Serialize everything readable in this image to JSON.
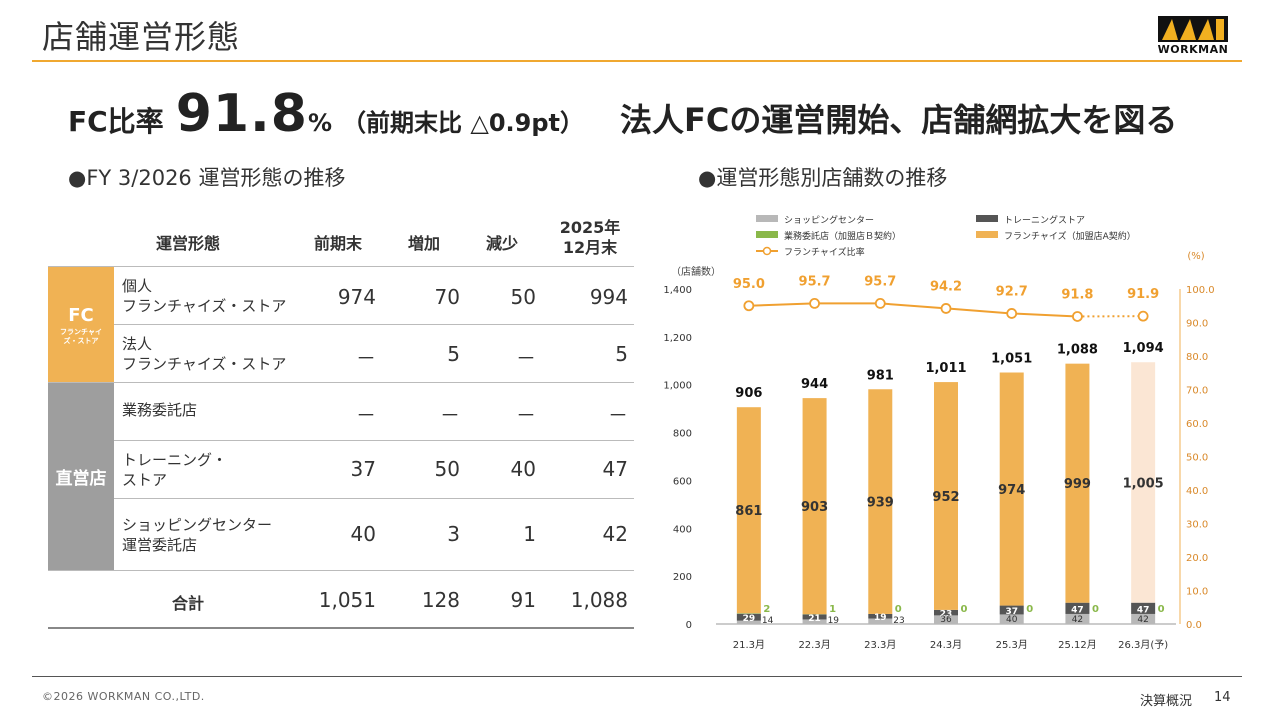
{
  "header": {
    "title": "店舗運営形態",
    "logo_text": "WORKMAN"
  },
  "headline": {
    "prefix": "FC比率",
    "ratio": "91.8",
    "pct": "%",
    "change": "（前期末比 △0.9pt）",
    "main": "法人FCの運営開始、店舗網拡大を図る"
  },
  "left_title": "●FY 3/2026 運営形態の推移",
  "right_title": "●運営形態別店舗数の推移",
  "table": {
    "headers": [
      "運営形態",
      "前期末",
      "増加",
      "減少",
      "2025年\n12月末"
    ],
    "groups": [
      {
        "label": "FC",
        "sublabel": "フランチャイズ・ストア",
        "color": "#f0b254"
      },
      {
        "label": "直営店",
        "sublabel": "",
        "color": "#9e9e9e"
      }
    ],
    "rows": [
      {
        "label": "個人\nフランチャイズ・ストア",
        "values": [
          "974",
          "70",
          "50",
          "994"
        ]
      },
      {
        "label": "法人\nフランチャイズ・ストア",
        "values": [
          "－",
          "5",
          "－",
          "5"
        ]
      },
      {
        "label": "業務委託店",
        "values": [
          "－",
          "－",
          "－",
          "－"
        ]
      },
      {
        "label": "トレーニング・\nストア",
        "values": [
          "37",
          "50",
          "40",
          "47"
        ]
      },
      {
        "label": "ショッピングセンター\n運営委託店",
        "values": [
          "40",
          "3",
          "1",
          "42"
        ]
      }
    ],
    "total": {
      "label": "合計",
      "values": [
        "1,051",
        "128",
        "91",
        "1,088"
      ]
    }
  },
  "chart_data": {
    "type": "bar",
    "stacked": true,
    "categories": [
      "21.3月",
      "22.3月",
      "23.3月",
      "24.3月",
      "25.3月",
      "25.12月",
      "26.3月(予)"
    ],
    "series": [
      {
        "name": "ショッピングセンター",
        "color": "#b8b8b8",
        "values": [
          14,
          19,
          23,
          36,
          40,
          42,
          42
        ]
      },
      {
        "name": "トレーニングストア",
        "color": "#555555",
        "values": [
          29,
          21,
          19,
          23,
          37,
          47,
          47
        ]
      },
      {
        "name": "業務委託店（加盟店Ｂ契約）",
        "color": "#8ab84a",
        "values": [
          2,
          1,
          0,
          0,
          0,
          0,
          0
        ]
      },
      {
        "name": "フランチャイズ（加盟店A契約）",
        "color": "#f0b254",
        "values": [
          861,
          903,
          939,
          952,
          974,
          999,
          1005
        ]
      }
    ],
    "totals": [
      906,
      944,
      981,
      1011,
      1051,
      1088,
      1094
    ],
    "line": {
      "name": "フランチャイズ比率",
      "color": "#f0a030",
      "values": [
        95.0,
        95.7,
        95.7,
        94.2,
        92.7,
        91.8,
        91.9
      ]
    },
    "forecast_fill": "#fbe6d4",
    "y_left": {
      "label": "（店舗数）",
      "min": 0,
      "max": 1400,
      "ticks": [
        "0",
        "200",
        "400",
        "600",
        "800",
        "1,000",
        "1,200",
        "1,400"
      ]
    },
    "y_right": {
      "label": "(%)",
      "min": 0,
      "max": 100,
      "ticks": [
        "0.0",
        "10.0",
        "20.0",
        "30.0",
        "40.0",
        "50.0",
        "60.0",
        "70.0",
        "80.0",
        "90.0",
        "100.0"
      ]
    },
    "legend_position": "top"
  },
  "footer": {
    "copyright": "©2026 WORKMAN CO.,LTD.",
    "section": "決算概況",
    "page": "14"
  },
  "colors": {
    "accent": "#f0a830",
    "fc": "#f0b254",
    "direct": "#9e9e9e",
    "line": "#f0a030",
    "green": "#8ab84a"
  }
}
